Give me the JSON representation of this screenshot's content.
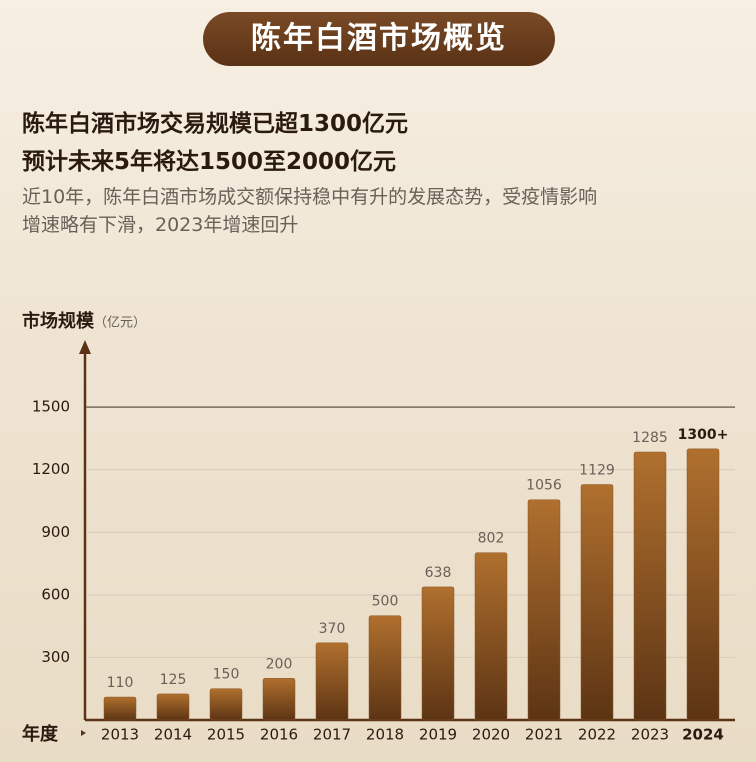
{
  "chart_data": {
    "type": "bar",
    "title": "陈年白酒市场概览",
    "headline": [
      "陈年白酒市场交易规模已超1300亿元",
      "预计未来5年将达1500至2000亿元"
    ],
    "subtitle": [
      "近10年，陈年白酒市场成交额保持稳中有升的发展态势，受疫情影响",
      "增速略有下滑，2023年增速回升"
    ],
    "y_label": "市场规模",
    "y_unit": "（亿元）",
    "x_label": "年度",
    "categories": [
      "2013",
      "2014",
      "2015",
      "2016",
      "2017",
      "2018",
      "2019",
      "2020",
      "2021",
      "2022",
      "2023",
      "2024"
    ],
    "values": [
      110,
      125,
      150,
      200,
      370,
      500,
      638,
      802,
      1056,
      1129,
      1285,
      1300
    ],
    "value_labels": [
      "110",
      "125",
      "150",
      "200",
      "370",
      "500",
      "638",
      "802",
      "1056",
      "1129",
      "1285",
      "1300+"
    ],
    "color": "#8b5524",
    "ylim": [
      0,
      1750
    ],
    "yticks": [
      300,
      600,
      900,
      1200,
      1500
    ],
    "grid": true
  }
}
